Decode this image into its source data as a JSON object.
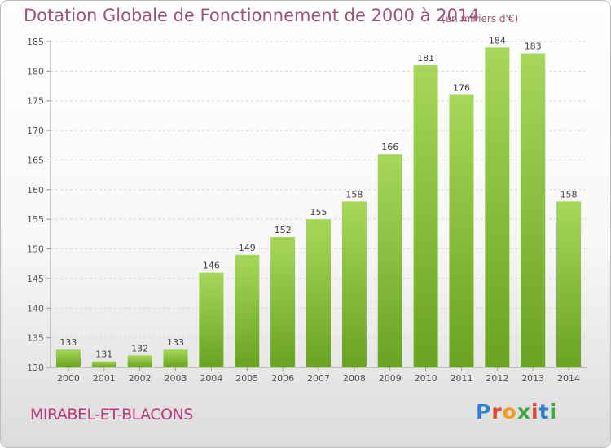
{
  "header": {
    "title": "Dotation Globale de Fonctionnement de 2000 à 2014",
    "subtitle": "(en milliers d'€)"
  },
  "footer": {
    "place": "MIRABEL-ET-BLACONS",
    "logo_text": "Proxiti"
  },
  "colors": {
    "bar_light": "#a7d75a",
    "bar_dark": "#69a31f",
    "title": "#a0547a",
    "place": "#c0397a"
  },
  "chart_data": {
    "type": "bar",
    "categories": [
      "2000",
      "2001",
      "2002",
      "2003",
      "2004",
      "2005",
      "2006",
      "2007",
      "2008",
      "2009",
      "2010",
      "2011",
      "2012",
      "2013",
      "2014"
    ],
    "values": [
      133,
      131,
      132,
      133,
      146,
      149,
      152,
      155,
      158,
      166,
      181,
      176,
      184,
      183,
      158
    ],
    "title": "Dotation Globale de Fonctionnement de 2000 à 2014",
    "subtitle": "(en milliers d'€)",
    "xlabel": "",
    "ylabel": "",
    "ylim": [
      130,
      185
    ],
    "yticks": [
      130,
      135,
      140,
      145,
      150,
      155,
      160,
      165,
      170,
      175,
      180,
      185
    ],
    "grid": true
  }
}
